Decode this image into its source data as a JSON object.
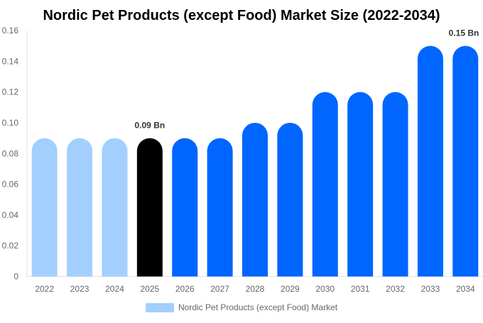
{
  "chart_data": {
    "type": "bar",
    "title": "Nordic Pet Products (except Food) Market Size (2022-2034)",
    "xlabel": "",
    "ylabel": "",
    "ylim": [
      0,
      0.16
    ],
    "yticks": [
      "0",
      "0.02",
      "0.04",
      "0.06",
      "0.08",
      "0.10",
      "0.12",
      "0.14",
      "0.16"
    ],
    "grid": false,
    "legend_position": "bottom",
    "categories": [
      "2022",
      "2023",
      "2024",
      "2025",
      "2026",
      "2027",
      "2028",
      "2029",
      "2030",
      "2031",
      "2032",
      "2033",
      "2034"
    ],
    "series": [
      {
        "name": "Nordic Pet Products (except Food) Market",
        "values": [
          0.09,
          0.09,
          0.09,
          0.09,
          0.09,
          0.09,
          0.1,
          0.1,
          0.12,
          0.12,
          0.12,
          0.15,
          0.15
        ]
      }
    ],
    "bar_colors": [
      "#a3cfff",
      "#a3cfff",
      "#a3cfff",
      "#000000",
      "#0066ff",
      "#0066ff",
      "#0066ff",
      "#0066ff",
      "#0066ff",
      "#0066ff",
      "#0066ff",
      "#0066ff",
      "#0066ff"
    ],
    "legend_color": "#a3cfff",
    "annotations": [
      {
        "category": "2025",
        "text": "0.09 Bn"
      },
      {
        "category": "2034",
        "text": "0.15 Bn"
      }
    ]
  }
}
